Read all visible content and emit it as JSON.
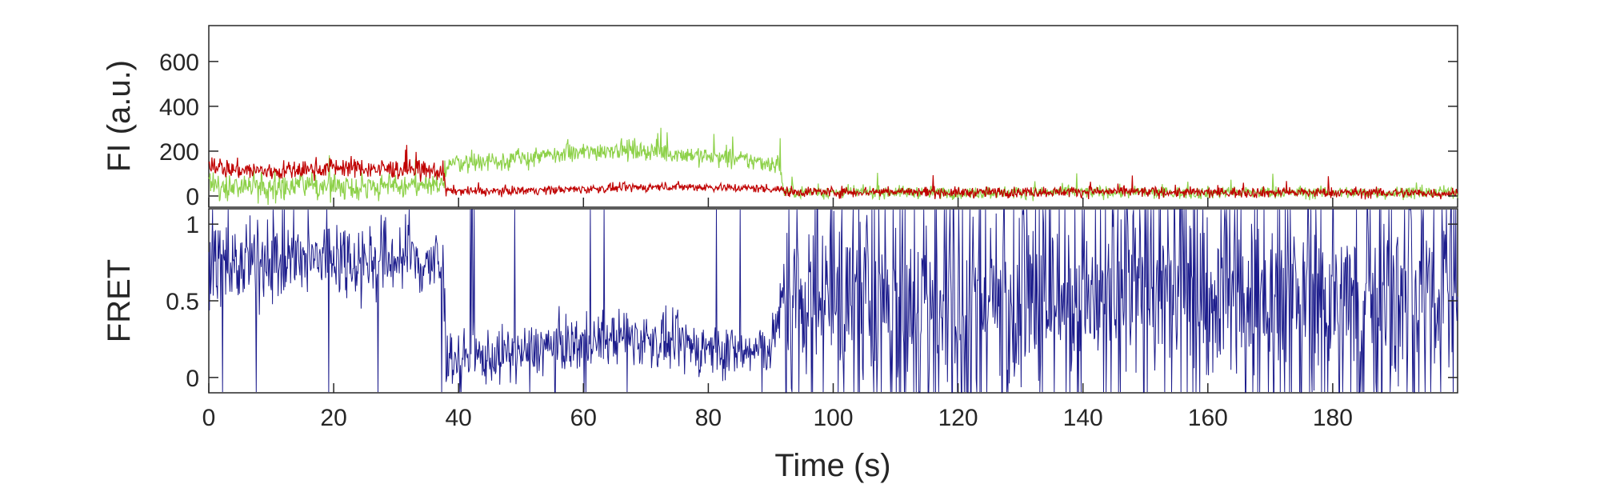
{
  "chart_data": [
    {
      "type": "line",
      "panel": "fluorescence",
      "ylabel": "FI (a.u.)",
      "xlim": [
        0,
        200
      ],
      "ylim": [
        -50,
        760
      ],
      "yticks": [
        0,
        200,
        400,
        600
      ],
      "grid": false,
      "series": [
        {
          "color": "#8ed14a",
          "x": [
            0,
            3,
            6,
            9,
            12,
            15,
            18,
            21,
            24,
            27,
            30,
            33,
            36,
            37.5,
            38,
            41,
            44,
            47,
            50,
            53,
            56,
            59,
            62,
            65,
            68,
            71,
            74,
            77,
            80,
            83,
            86,
            89,
            91.5,
            92,
            100,
            110,
            120,
            130,
            140,
            150,
            160,
            170,
            180,
            190,
            200
          ],
          "y": [
            45,
            40,
            50,
            45,
            40,
            48,
            42,
            46,
            40,
            44,
            42,
            45,
            40,
            45,
            150,
            150,
            155,
            160,
            165,
            175,
            180,
            190,
            200,
            210,
            205,
            200,
            190,
            185,
            175,
            165,
            160,
            150,
            140,
            20,
            15,
            18,
            14,
            16,
            18,
            15,
            14,
            16,
            15,
            14,
            15
          ]
        },
        {
          "color": "#c00000",
          "x": [
            0,
            3,
            6,
            9,
            12,
            15,
            18,
            21,
            24,
            27,
            30,
            33,
            36,
            37.5,
            38,
            44,
            50,
            56,
            62,
            68,
            74,
            80,
            86,
            91.5,
            92,
            100,
            110,
            120,
            130,
            140,
            150,
            160,
            170,
            180,
            190,
            200
          ],
          "y": [
            150,
            120,
            115,
            110,
            112,
            115,
            125,
            130,
            125,
            120,
            120,
            115,
            110,
            110,
            25,
            20,
            25,
            28,
            32,
            38,
            42,
            40,
            35,
            32,
            20,
            18,
            20,
            15,
            18,
            20,
            18,
            15,
            16,
            15,
            14,
            12
          ]
        }
      ],
      "segments": [
        {
          "start": 0,
          "end": 38,
          "noise": [
            55,
            40
          ]
        },
        {
          "start": 38,
          "end": 92,
          "noise": [
            40,
            18
          ]
        },
        {
          "start": 92,
          "end": 200,
          "noise": [
            25,
            22
          ]
        }
      ]
    },
    {
      "type": "line",
      "panel": "fret",
      "xlabel": "Time (s)",
      "ylabel": "FRET",
      "xlim": [
        0,
        200
      ],
      "ylim": [
        -0.1,
        1.1
      ],
      "xticks": [
        0,
        20,
        40,
        60,
        80,
        100,
        120,
        140,
        160,
        180
      ],
      "yticks": [
        0,
        0.5,
        1
      ],
      "grid": false,
      "series": [
        {
          "color": "#1c1c8c",
          "x": [
            0,
            5,
            10,
            15,
            20,
            25,
            30,
            35,
            37.5,
            38,
            42,
            46,
            50,
            54,
            58,
            62,
            66,
            70,
            74,
            78,
            82,
            86,
            90,
            92,
            100,
            120,
            140,
            160,
            180,
            200
          ],
          "y": [
            0.75,
            0.72,
            0.78,
            0.74,
            0.8,
            0.76,
            0.78,
            0.75,
            0.72,
            0.15,
            0.12,
            0.14,
            0.16,
            0.2,
            0.22,
            0.24,
            0.26,
            0.25,
            0.22,
            0.2,
            0.18,
            0.16,
            0.2,
            0.5,
            0.52,
            0.5,
            0.52,
            0.5,
            0.5,
            0.52
          ]
        }
      ],
      "segments": [
        {
          "start": 0,
          "end": 38,
          "noise": 0.22
        },
        {
          "start": 38,
          "end": 92,
          "noise": 0.15
        },
        {
          "start": 92,
          "end": 200,
          "noise": 0.45
        }
      ]
    }
  ]
}
